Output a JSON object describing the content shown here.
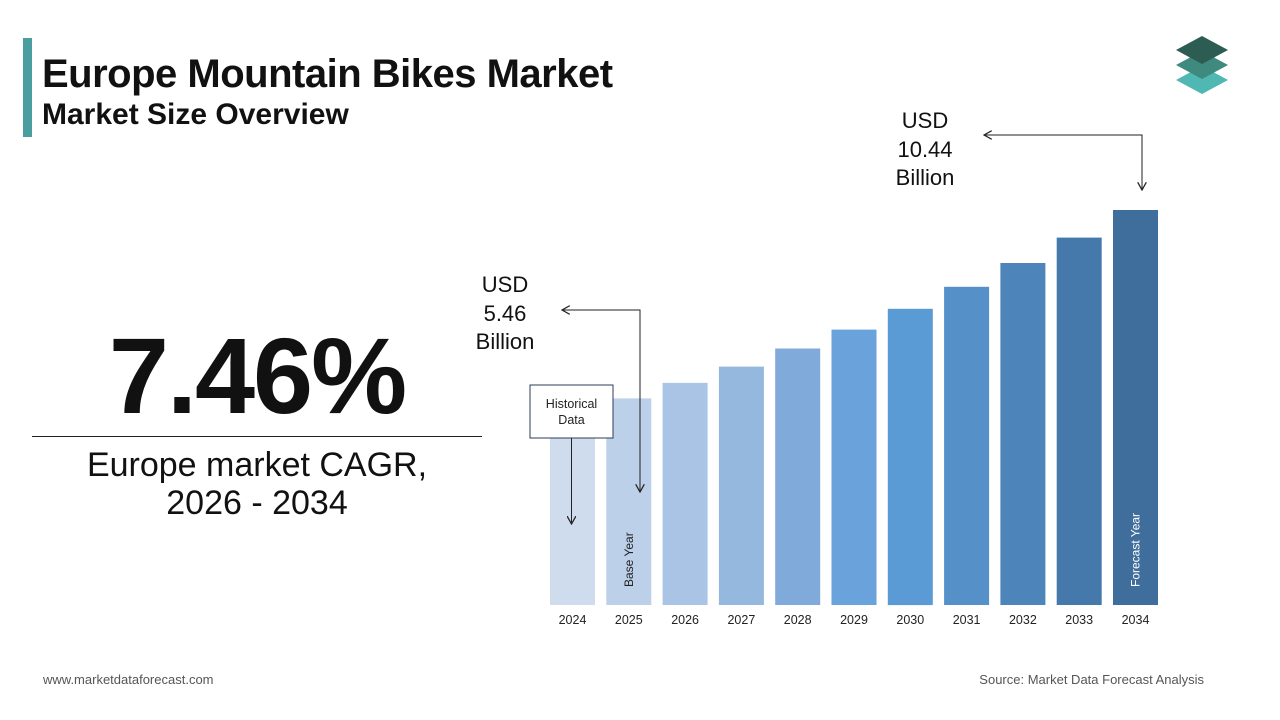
{
  "header": {
    "title": "Europe Mountain Bikes Market",
    "subtitle": "Market Size Overview"
  },
  "kpi": {
    "cagr_value": "7.46%",
    "cagr_label_line1": "Europe market CAGR,",
    "cagr_label_line2": "2026 - 2034"
  },
  "footer": {
    "website": "www.marketdataforecast.com",
    "source": "Source: Market Data Forecast Analysis"
  },
  "colors": {
    "accent": "#4a9ea0",
    "bars": [
      "#cfdcee",
      "#bcd0ea",
      "#a9c4e4",
      "#95b8df",
      "#7faad9",
      "#6aa2dc",
      "#5b9bd5",
      "#5690c8",
      "#4d85bb",
      "#4679ab",
      "#3f6e9c",
      "#39658e"
    ]
  },
  "chart_data": {
    "type": "bar",
    "categories": [
      "2024",
      "2025",
      "2026",
      "2027",
      "2028",
      "2029",
      "2030",
      "2031",
      "2032",
      "2033",
      "2034"
    ],
    "values": [
      5.08,
      5.46,
      5.87,
      6.3,
      6.78,
      7.28,
      7.83,
      8.41,
      9.04,
      9.71,
      10.44
    ],
    "ylim": [
      0,
      10.44
    ],
    "bar_labels": {
      "1": "Base Year",
      "10": "Forecast Year"
    },
    "annotations": {
      "base": {
        "line1": "USD",
        "line2": "5.46",
        "line3": "Billion"
      },
      "forecast": {
        "line1": "USD",
        "line2": "10.44",
        "line3": "Billion"
      },
      "historical": {
        "line1": "Historical",
        "line2": "Data"
      }
    },
    "grid": false,
    "legend": "none"
  }
}
